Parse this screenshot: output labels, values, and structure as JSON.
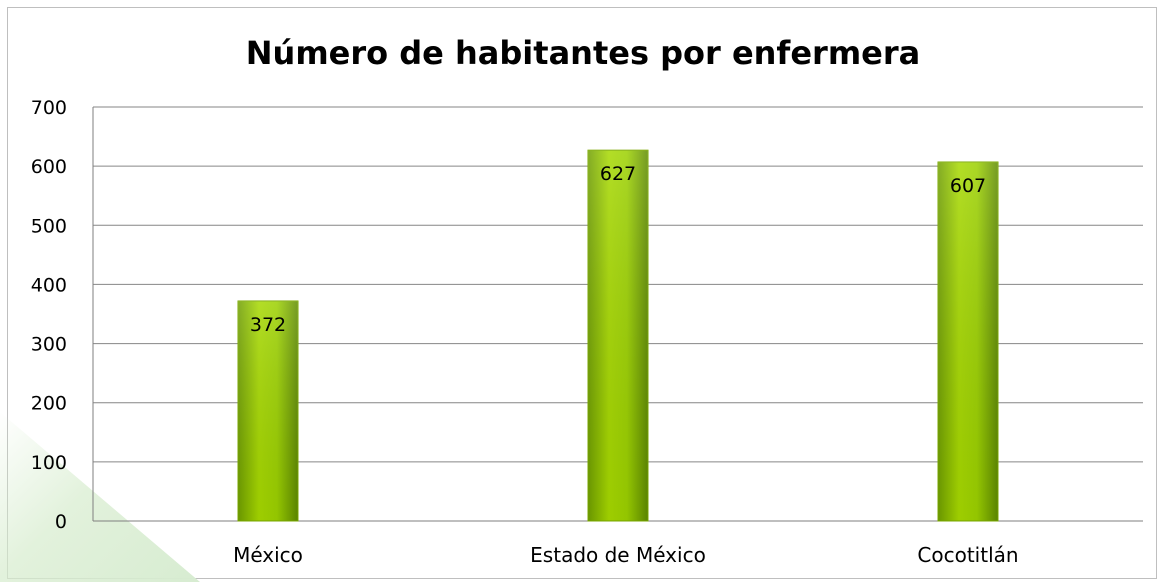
{
  "chart_data": {
    "type": "bar",
    "title": "Número de habitantes por enfermera",
    "categories": [
      "México",
      "Estado de México",
      "Cocotitlán"
    ],
    "values": [
      372,
      627,
      607
    ],
    "ylim": [
      0,
      700
    ],
    "yticks": [
      0,
      100,
      200,
      300,
      400,
      500,
      600,
      700
    ],
    "grid": true,
    "legend": false,
    "bar_color": "#8fc400"
  }
}
